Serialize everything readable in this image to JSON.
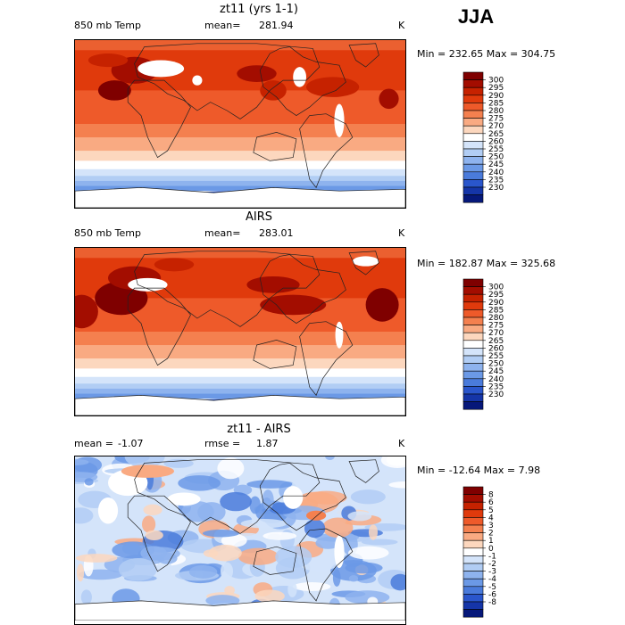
{
  "season": "JJA",
  "chart_data": [
    {
      "type": "heatmap",
      "title": "zt11 (yrs 1-1)",
      "variable": "850 mb Temp",
      "mean_label": "mean=",
      "mean_value": "281.94",
      "units": "K",
      "minmax": "Min = 232.65 Max = 304.75",
      "colorbar_labels": [
        "300",
        "295",
        "290",
        "285",
        "280",
        "275",
        "270",
        "265",
        "260",
        "255",
        "250",
        "245",
        "240",
        "235",
        "230"
      ],
      "colors": [
        "#7f0000",
        "#a30d00",
        "#c62200",
        "#e03a0c",
        "#ee5a2a",
        "#f4804f",
        "#f9aa82",
        "#fcd7be",
        "#ffffff",
        "#d4e4fa",
        "#b1cdf4",
        "#8eb3ee",
        "#6b99e6",
        "#4a7bdb",
        "#2a56cc",
        "#1535a8",
        "#06187a"
      ]
    },
    {
      "type": "heatmap",
      "title": "AIRS",
      "variable": "850 mb Temp",
      "mean_label": "mean=",
      "mean_value": "283.01",
      "units": "K",
      "minmax": "Min = 182.87 Max = 325.68",
      "colorbar_labels": [
        "300",
        "295",
        "290",
        "285",
        "280",
        "275",
        "270",
        "265",
        "260",
        "255",
        "250",
        "245",
        "240",
        "235",
        "230"
      ],
      "colors": [
        "#7f0000",
        "#a30d00",
        "#c62200",
        "#e03a0c",
        "#ee5a2a",
        "#f4804f",
        "#f9aa82",
        "#fcd7be",
        "#ffffff",
        "#d4e4fa",
        "#b1cdf4",
        "#8eb3ee",
        "#6b99e6",
        "#4a7bdb",
        "#2a56cc",
        "#1535a8",
        "#06187a"
      ]
    },
    {
      "type": "heatmap",
      "title": "zt11 - AIRS",
      "variable": "mean =",
      "mean_label": "",
      "mean_value": "-1.07",
      "rmse_label": "rmse =",
      "rmse_value": "1.87",
      "units": "K",
      "minmax": "Min = -12.64 Max = 7.98",
      "colorbar_labels": [
        "8",
        "6",
        "5",
        "4",
        "3",
        "2",
        "1",
        "0",
        "-1",
        "-2",
        "-3",
        "-4",
        "-5",
        "-6",
        "-8"
      ],
      "colors": [
        "#7f0000",
        "#a30d00",
        "#c62200",
        "#e03a0c",
        "#ee5a2a",
        "#f4804f",
        "#f9aa82",
        "#fcd7be",
        "#ffffff",
        "#d4e4fa",
        "#b1cdf4",
        "#8eb3ee",
        "#6b99e6",
        "#4a7bdb",
        "#2a56cc",
        "#1535a8",
        "#06187a"
      ]
    }
  ]
}
